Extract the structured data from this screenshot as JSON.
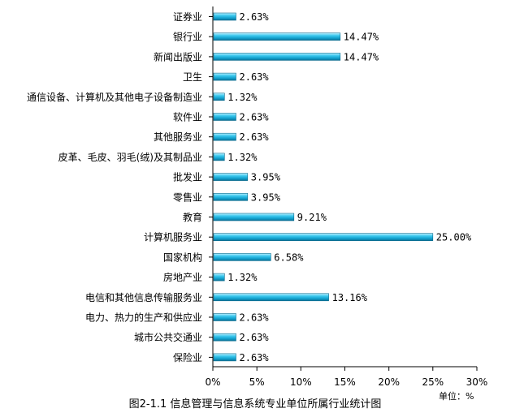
{
  "chart_data": {
    "type": "bar",
    "orientation": "horizontal",
    "categories": [
      "证券业",
      "银行业",
      "新闻出版业",
      "卫生",
      "通信设备、计算机及其他电子设备制造业",
      "软件业",
      "其他服务业",
      "皮革、毛皮、羽毛(绒)及其制品业",
      "批发业",
      "零售业",
      "教育",
      "计算机服务业",
      "国家机构",
      "房地产业",
      "电信和其他信息传输服务业",
      "电力、热力的生产和供应业",
      "城市公共交通业",
      "保险业"
    ],
    "values": [
      2.63,
      14.47,
      14.47,
      2.63,
      1.32,
      2.63,
      2.63,
      1.32,
      3.95,
      3.95,
      9.21,
      25.0,
      6.58,
      1.32,
      13.16,
      2.63,
      2.63,
      2.63
    ],
    "value_labels": [
      "2.63%",
      "14.47%",
      "14.47%",
      "2.63%",
      "1.32%",
      "2.63%",
      "2.63%",
      "1.32%",
      "3.95%",
      "3.95%",
      "9.21%",
      "25.00%",
      "6.58%",
      "1.32%",
      "13.16%",
      "2.63%",
      "2.63%",
      "2.63%"
    ],
    "xlim": [
      0,
      30
    ],
    "xticks": [
      0,
      5,
      10,
      15,
      20,
      25,
      30
    ],
    "xtick_labels": [
      "0%",
      "5%",
      "10%",
      "15%",
      "20%",
      "25%",
      "30%"
    ],
    "unit_label": "单位：%",
    "caption": "图2-1.1 信息管理与信息系统专业单位所属行业统计图",
    "grid": false,
    "legend": "none",
    "bar_color": "#1ab0d8"
  }
}
